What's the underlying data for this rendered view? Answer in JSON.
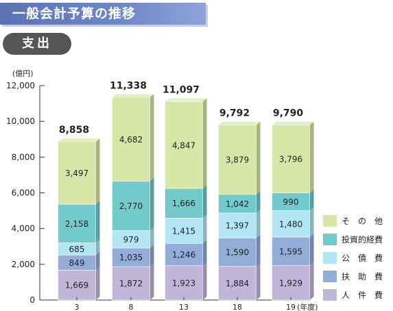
{
  "header": {
    "title": "一般会計予算の推移",
    "section": "支出"
  },
  "chart_data": {
    "type": "bar",
    "stacked": true,
    "unit_label": "(億円)",
    "x_unit_label": "(年度)",
    "categories": [
      "3",
      "8",
      "13",
      "18",
      "19"
    ],
    "totals": [
      "8,858",
      "11,338",
      "11,097",
      "9,792",
      "9,790"
    ],
    "ylim": [
      0,
      12000
    ],
    "yticks": [
      0,
      2000,
      4000,
      6000,
      8000,
      10000,
      12000
    ],
    "ytick_labels": [
      "0",
      "2,000",
      "4,000",
      "6,000",
      "8,000",
      "10,000",
      "12,000"
    ],
    "legend_position": "right",
    "series": [
      {
        "name": "人　件　費",
        "color": "#c2b6d8",
        "values": [
          1669,
          1872,
          1923,
          1884,
          1929
        ],
        "labels": [
          "1,669",
          "1,872",
          "1,923",
          "1,884",
          "1,929"
        ]
      },
      {
        "name": "扶　助　費",
        "color": "#94acd8",
        "values": [
          849,
          1035,
          1246,
          1590,
          1595
        ],
        "labels": [
          "849",
          "1,035",
          "1,246",
          "1,590",
          "1,595"
        ]
      },
      {
        "name": "公　債　費",
        "color": "#b2e6f4",
        "values": [
          685,
          979,
          1415,
          1397,
          1480
        ],
        "labels": [
          "685",
          "979",
          "1,415",
          "1,397",
          "1,480"
        ]
      },
      {
        "name": "投資的経費",
        "color": "#72cacb",
        "values": [
          2158,
          2770,
          1666,
          1042,
          990
        ],
        "labels": [
          "2,158",
          "2,770",
          "1,666",
          "1,042",
          "990"
        ]
      },
      {
        "name": "そ　の　他",
        "color": "#d6e6a6",
        "values": [
          3497,
          4682,
          4847,
          3879,
          3796
        ],
        "labels": [
          "3,497",
          "4,682",
          "4,847",
          "3,879",
          "3,796"
        ]
      }
    ]
  }
}
